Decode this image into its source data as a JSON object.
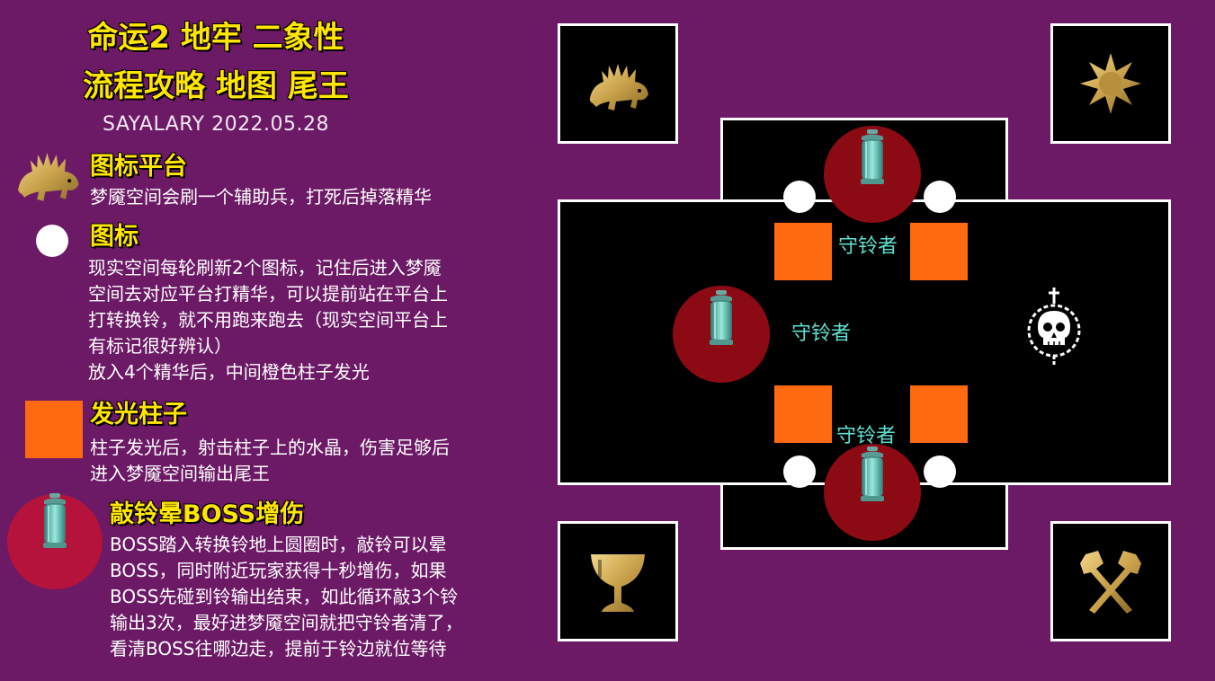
{
  "header": {
    "title_line1": "命运2 地牢 二象性",
    "title_line2": "流程攻略 地图 尾王",
    "author": "SAYALARY 2022.05.28"
  },
  "legend": {
    "icon_platform": {
      "heading": "图标平台",
      "text": "梦魇空间会刷一个辅助兵，打死后掉落精华",
      "icon": "beast-icon"
    },
    "icon": {
      "heading": "图标",
      "text": "现实空间每轮刷新2个图标，记住后进入梦魇\n空间去对应平台打精华，可以提前站在平台上\n打转换铃，就不用跑来跑去（现实空间平台上\n有标记很好辨认）\n放入4个精华后，中间橙色柱子发光"
    },
    "pillar": {
      "heading": "发光柱子",
      "text": "柱子发光后，射击柱子上的水晶，伤害足够后\n进入梦魇空间输出尾王",
      "color": "#ff6a10"
    },
    "bell": {
      "heading": "敲铃晕BOSS增伤",
      "text": "BOSS踏入转换铃地上圆圈时，敲铃可以晕\nBOSS，同时附近玩家获得十秒增伤，如果\nBOSS先碰到铃输出结束，如此循环敲3个铃\n输出3次，最好进梦魇空间就把守铃者清了，\n看清BOSS往哪边走，提前于铃边就位等待",
      "color": "#b5123c"
    }
  },
  "map": {
    "keeper_label_top": "守铃者",
    "keeper_label_left": "守铃者",
    "keeper_label_bottom": "守铃者",
    "boss_icon": "skull-icon",
    "bell_icon": "lantern-icon",
    "corner_icons": [
      "beast-icon",
      "sun-icon",
      "chalice-icon",
      "crossed-axes-icon"
    ],
    "colors": {
      "background": "#6c1a66",
      "title": "#ffe600",
      "pillar": "#ff6a10",
      "bell_circle": "#8c0a14",
      "keeper_text": "#5fe0d0"
    }
  }
}
